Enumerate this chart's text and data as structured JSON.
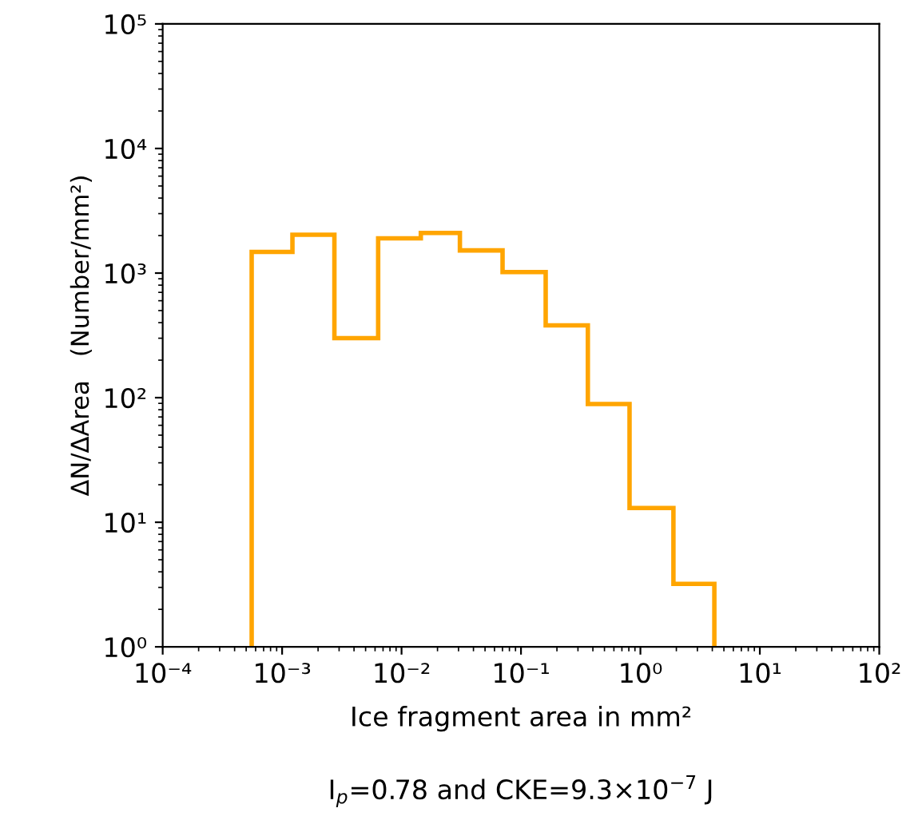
{
  "chart_data": {
    "type": "histogram",
    "xlabel": "Ice fragment area in mm²",
    "ylabel": "ΔN/ΔArea   (Number/mm²)",
    "annotations": [
      "I$_{p}$=0.78 and CKE=9.3×10$^{−7}$ J"
    ],
    "bins": [
      0.000556,
      0.00122,
      0.00274,
      0.00637,
      0.0145,
      0.0308,
      0.0701,
      0.161,
      0.363,
      0.811,
      1.89,
      4.16
    ],
    "values": [
      1480,
      2030,
      300,
      1900,
      2100,
      1520,
      1020,
      380,
      89,
      13,
      3.2
    ],
    "color": "#ffa500",
    "log": "xy",
    "xlim": [
      0.0001,
      100
    ],
    "ylim": [
      1,
      100000
    ],
    "xticks": [
      {
        "value": 0.0001,
        "label": "10⁻⁴"
      },
      {
        "value": 0.001,
        "label": "10⁻³"
      },
      {
        "value": 0.01,
        "label": "10⁻²"
      },
      {
        "value": 0.1,
        "label": "10⁻¹"
      },
      {
        "value": 1,
        "label": "10⁰"
      },
      {
        "value": 10,
        "label": "10¹"
      },
      {
        "value": 100,
        "label": "10²"
      }
    ],
    "yticks": [
      {
        "value": 1,
        "label": "10⁰"
      },
      {
        "value": 10,
        "label": "10¹"
      },
      {
        "value": 100,
        "label": "10²"
      },
      {
        "value": 1000,
        "label": "10³"
      },
      {
        "value": 10000,
        "label": "10⁴"
      },
      {
        "value": 100000,
        "label": "10⁵"
      }
    ],
    "grid": false
  }
}
